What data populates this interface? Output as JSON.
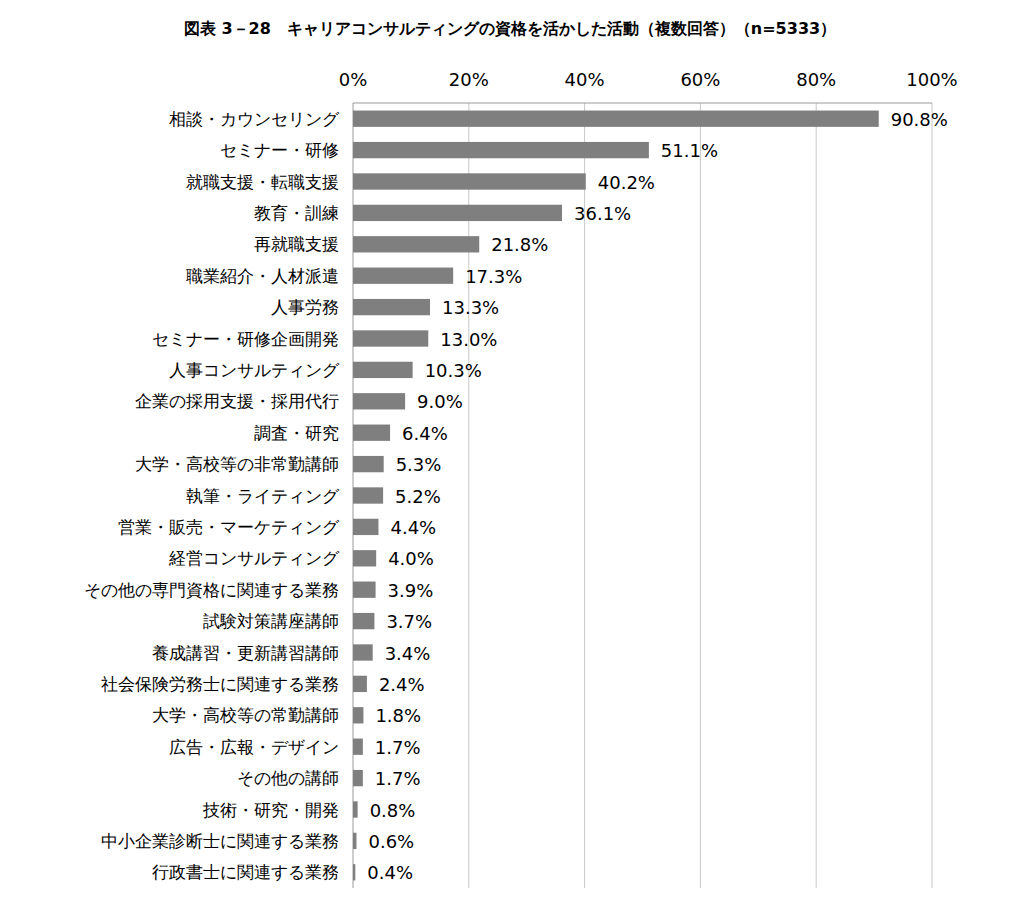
{
  "chart_data": {
    "type": "bar",
    "orientation": "horizontal",
    "title": "図表 3－28　キャリアコンサルティングの資格を活かした活動（複数回答）（n=5333）",
    "categories": [
      "相談・カウンセリング",
      "セミナー・研修",
      "就職支援・転職支援",
      "教育・訓練",
      "再就職支援",
      "職業紹介・人材派遣",
      "人事労務",
      "セミナー・研修企画開発",
      "人事コンサルティング",
      "企業の採用支援・採用代行",
      "調査・研究",
      "大学・高校等の非常勤講師",
      "執筆・ライティング",
      "営業・販売・マーケティング",
      "経営コンサルティング",
      "その他の専門資格に関連する業務",
      "試験対策講座講師",
      "養成講習・更新講習講師",
      "社会保険労務士に関連する業務",
      "大学・高校等の常勤講師",
      "広告・広報・デザイン",
      "その他の講師",
      "技術・研究・開発",
      "中小企業診断士に関連する業務",
      "行政書士に関連する業務"
    ],
    "values": [
      90.8,
      51.1,
      40.2,
      36.1,
      21.8,
      17.3,
      13.3,
      13.0,
      10.3,
      9.0,
      6.4,
      5.3,
      5.2,
      4.4,
      4.0,
      3.9,
      3.7,
      3.4,
      2.4,
      1.8,
      1.7,
      1.7,
      0.8,
      0.6,
      0.4
    ],
    "value_labels": [
      "90.8%",
      "51.1%",
      "40.2%",
      "36.1%",
      "21.8%",
      "17.3%",
      "13.3%",
      "13.0%",
      "10.3%",
      "9.0%",
      "6.4%",
      "5.3%",
      "5.2%",
      "4.4%",
      "4.0%",
      "3.9%",
      "3.7%",
      "3.4%",
      "2.4%",
      "1.8%",
      "1.7%",
      "1.7%",
      "0.8%",
      "0.6%",
      "0.4%"
    ],
    "color": "#7f7f7f",
    "xlim": [
      0,
      100
    ],
    "xticks": [
      {
        "value": 0,
        "label": "0%"
      },
      {
        "value": 20,
        "label": "20%"
      },
      {
        "value": 40,
        "label": "40%"
      },
      {
        "value": 60,
        "label": "60%"
      },
      {
        "value": 80,
        "label": "80%"
      },
      {
        "value": 100,
        "label": "100%"
      }
    ],
    "grid": true,
    "data_labels": true
  }
}
